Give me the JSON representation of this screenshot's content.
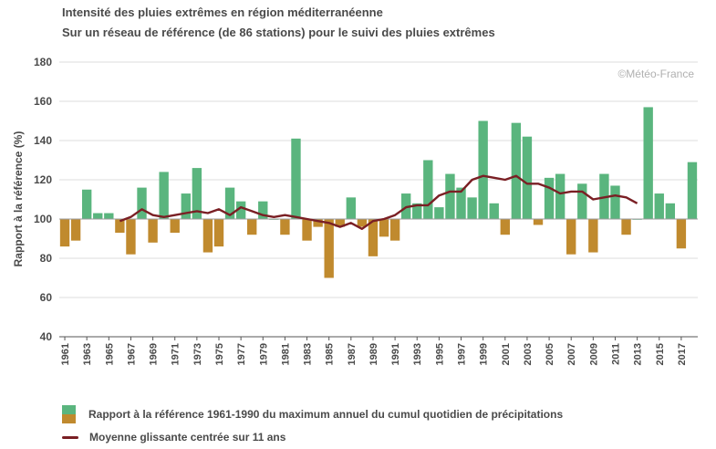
{
  "title": "Intensité des pluies extrêmes en région méditerranéenne",
  "subtitle": "Sur un réseau de référence (de 86 stations) pour le suivi des pluies extrêmes",
  "watermark": "©Météo-France",
  "legend": {
    "bars": "Rapport à la référence 1961-1990 du maximum annuel du cumul quotidien de précipitations",
    "line": "Moyenne glissante centrée sur 11 ans"
  },
  "colors": {
    "above": "#5ab57e",
    "below": "#c08a2e",
    "line": "#7a1f24",
    "grid": "#dddddd"
  },
  "chart_data": {
    "type": "bar",
    "ylabel": "Rapport à la référence (%)",
    "xlabel": "",
    "ylim": [
      40,
      180
    ],
    "yticks": [
      40,
      60,
      80,
      100,
      120,
      140,
      160,
      180
    ],
    "baseline": 100,
    "grid": true,
    "x": [
      1961,
      1962,
      1963,
      1964,
      1965,
      1966,
      1967,
      1968,
      1969,
      1970,
      1971,
      1972,
      1973,
      1974,
      1975,
      1976,
      1977,
      1978,
      1979,
      1980,
      1981,
      1982,
      1983,
      1984,
      1985,
      1986,
      1987,
      1988,
      1989,
      1990,
      1991,
      1992,
      1993,
      1994,
      1995,
      1996,
      1997,
      1998,
      1999,
      2000,
      2001,
      2002,
      2003,
      2004,
      2005,
      2006,
      2007,
      2008,
      2009,
      2010,
      2011,
      2012,
      2013,
      2014,
      2015,
      2016,
      2017,
      2018
    ],
    "xtick_labels": [
      "1961",
      "1963",
      "1965",
      "1967",
      "1969",
      "1971",
      "1973",
      "1975",
      "1977",
      "1979",
      "1981",
      "1983",
      "1985",
      "1987",
      "1989",
      "1991",
      "1993",
      "1995",
      "1997",
      "1999",
      "2001",
      "2003",
      "2005",
      "2007",
      "2009",
      "2011",
      "2013",
      "2015",
      "2017"
    ],
    "series": [
      {
        "type": "bar",
        "values": [
          86,
          89,
          115,
          103,
          103,
          93,
          82,
          116,
          88,
          124,
          93,
          113,
          126,
          83,
          86,
          116,
          109,
          92,
          109,
          100,
          92,
          141,
          89,
          96,
          70,
          96,
          111,
          96,
          81,
          91,
          89,
          113,
          108,
          130,
          106,
          123,
          116,
          111,
          150,
          108,
          92,
          149,
          142,
          97,
          121,
          123,
          82,
          118,
          83,
          123,
          117,
          92,
          100,
          157,
          113,
          108,
          85,
          129
        ]
      },
      {
        "type": "line",
        "name": "Moyenne glissante centrée sur 11 ans",
        "x": [
          1966,
          1967,
          1968,
          1969,
          1970,
          1971,
          1972,
          1973,
          1974,
          1975,
          1976,
          1977,
          1978,
          1979,
          1980,
          1981,
          1982,
          1983,
          1984,
          1985,
          1986,
          1987,
          1988,
          1989,
          1990,
          1991,
          1992,
          1993,
          1994,
          1995,
          1996,
          1997,
          1998,
          1999,
          2000,
          2001,
          2002,
          2003,
          2004,
          2005,
          2006,
          2007,
          2008,
          2009,
          2010,
          2011,
          2012,
          2013
        ],
        "values": [
          99,
          101,
          105,
          102,
          101,
          102,
          103,
          104,
          103,
          105,
          102,
          106,
          104,
          102,
          101,
          102,
          101,
          100,
          99,
          98,
          96,
          98,
          95,
          99,
          100,
          102,
          106,
          107,
          107,
          112,
          114,
          114,
          120,
          122,
          121,
          120,
          122,
          118,
          118,
          116,
          113,
          114,
          114,
          110,
          111,
          112,
          111,
          108
        ]
      }
    ]
  }
}
